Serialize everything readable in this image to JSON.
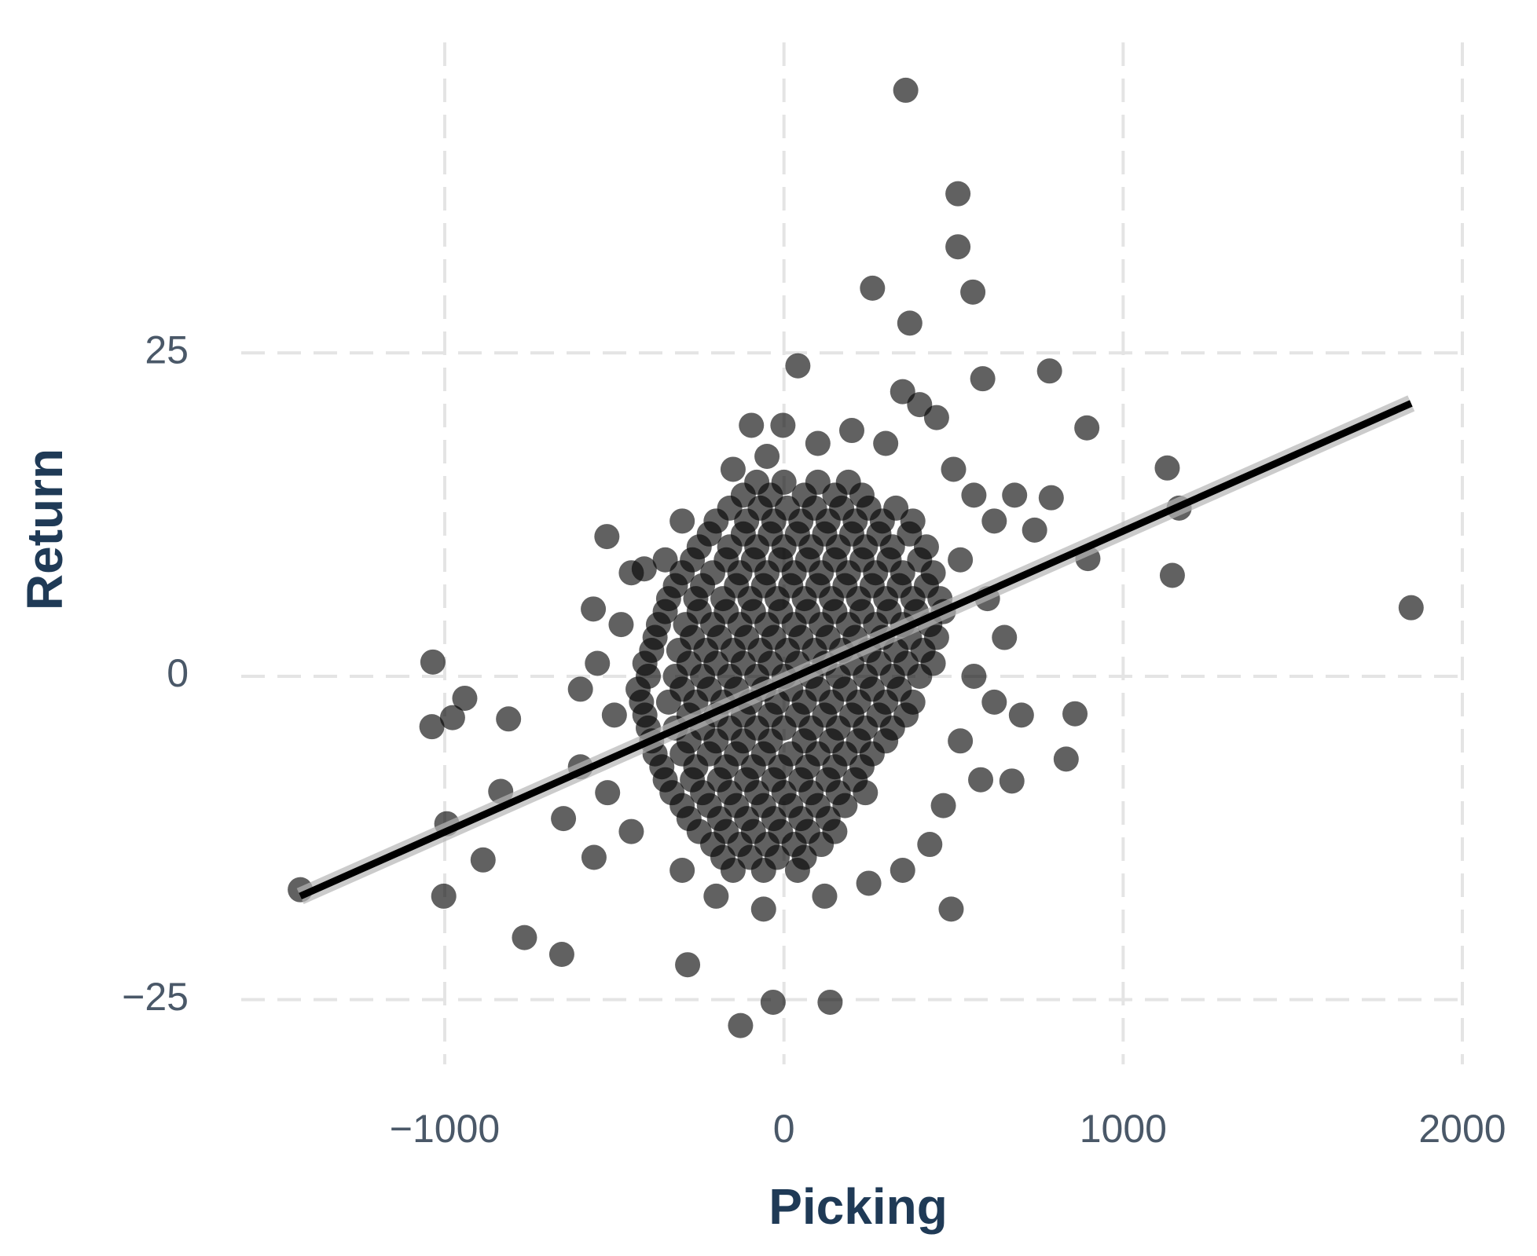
{
  "chart_data": {
    "type": "scatter",
    "x_label": "Picking",
    "y_label": "Return",
    "xlim": [
      -1600,
      2000
    ],
    "ylim": [
      -30,
      49
    ],
    "xticks": [
      {
        "value": -1000,
        "label": "−1000"
      },
      0,
      1000,
      2000
    ],
    "yticks": [
      {
        "value": -25,
        "label": "−25"
      },
      0,
      25
    ],
    "grid": true,
    "color": "#000000",
    "x": [
      359,
      513,
      513,
      557,
      261,
      371,
      41,
      783,
      586,
      893,
      1130,
      1165,
      1145,
      1849,
      -522,
      -1035,
      -941,
      -1038,
      -977,
      -812,
      -1426,
      -1003,
      -765,
      -655,
      -284,
      -128,
      -32,
      136,
      493,
      832,
      858,
      672,
      -887,
      -835,
      -994,
      788,
      739,
      896,
      -562,
      -412,
      -96,
      -3,
      500,
      560,
      620,
      680,
      520,
      600,
      650,
      560,
      620,
      700,
      520,
      580,
      470,
      430,
      350,
      250,
      120,
      -60,
      -200,
      -300,
      -450,
      -520,
      -600,
      -650,
      -560,
      -500,
      -550,
      -480,
      -600,
      -450,
      300,
      200,
      400,
      450,
      350,
      -50,
      -150,
      100,
      -300,
      -350,
      -80,
      0,
      100,
      190,
      -120,
      -40,
      60,
      150,
      230,
      -160,
      -70,
      10,
      90,
      170,
      250,
      330,
      -200,
      -110,
      -30,
      50,
      130,
      210,
      290,
      380,
      -220,
      -120,
      -40,
      40,
      120,
      200,
      280,
      370,
      -250,
      -160,
      -80,
      0,
      80,
      160,
      240,
      320,
      420,
      -270,
      -170,
      -90,
      -10,
      70,
      150,
      230,
      310,
      400,
      -300,
      -210,
      -130,
      -50,
      30,
      110,
      190,
      270,
      350,
      440,
      -320,
      -240,
      -140,
      -60,
      20,
      100,
      180,
      260,
      340,
      420,
      -340,
      -260,
      -180,
      -100,
      -20,
      60,
      140,
      220,
      300,
      380,
      460,
      -350,
      -250,
      -170,
      -90,
      -10,
      70,
      150,
      230,
      310,
      390,
      470,
      -370,
      -290,
      -210,
      -130,
      -50,
      30,
      110,
      190,
      270,
      350,
      430,
      -380,
      -270,
      -190,
      -110,
      -30,
      50,
      130,
      210,
      290,
      370,
      450,
      -390,
      -310,
      -230,
      -150,
      -70,
      10,
      90,
      170,
      250,
      330,
      410,
      -410,
      -280,
      -200,
      -120,
      -40,
      40,
      120,
      200,
      280,
      360,
      440,
      -400,
      -320,
      -240,
      -160,
      -80,
      0,
      80,
      160,
      240,
      320,
      400,
      -430,
      -300,
      -220,
      -140,
      -60,
      20,
      100,
      180,
      260,
      340,
      -420,
      -340,
      -260,
      -180,
      -100,
      -20,
      60,
      140,
      220,
      300,
      380,
      -410,
      -280,
      -200,
      -120,
      -40,
      40,
      120,
      200,
      280,
      360,
      -400,
      -320,
      -240,
      -160,
      -80,
      0,
      80,
      160,
      240,
      320,
      -390,
      -280,
      -200,
      -120,
      -40,
      60,
      140,
      220,
      300,
      -380,
      -300,
      -220,
      -140,
      -60,
      20,
      100,
      180,
      260,
      -360,
      -260,
      -170,
      -90,
      -10,
      70,
      150,
      230,
      -350,
      -270,
      -190,
      -110,
      -30,
      50,
      130,
      210,
      -330,
      -240,
      -160,
      -80,
      0,
      80,
      160,
      240,
      -300,
      -220,
      -140,
      -60,
      20,
      100,
      180,
      -280,
      -190,
      -110,
      -30,
      50,
      130,
      -250,
      -170,
      -90,
      -10,
      70,
      150,
      -210,
      -130,
      -50,
      30,
      110,
      -180,
      -100,
      -20,
      60,
      -150,
      -60,
      40
    ],
    "y": [
      45.3,
      37.3,
      33.2,
      29.7,
      30,
      27.3,
      24,
      23.6,
      23,
      19.2,
      16.1,
      13,
      7.8,
      5.3,
      10.8,
      1.1,
      -1.7,
      -3.9,
      -3.2,
      -3.3,
      -16.5,
      -17,
      -20.2,
      -21.5,
      -22.3,
      -27,
      -25.2,
      -25.2,
      -18,
      -6.4,
      -2.9,
      -8.1,
      -14.2,
      -8.9,
      -11.4,
      13.8,
      11.3,
      9.1,
      5.2,
      8.3,
      19.4,
      19.4,
      16,
      14,
      12,
      14,
      9,
      6,
      3,
      0,
      -2,
      -3,
      -5,
      -8,
      -10,
      -13,
      -15,
      -16,
      -17,
      -18,
      -17,
      -15,
      -12,
      -9,
      -7,
      -11,
      -14,
      -3,
      1,
      4,
      -1,
      8,
      18,
      19,
      21,
      20,
      22,
      17,
      16,
      18,
      12,
      9,
      15,
      15,
      15,
      15,
      14,
      14,
      14,
      14,
      14,
      13,
      13,
      13,
      13,
      13,
      13,
      13,
      12,
      12,
      12,
      12,
      12,
      12,
      12,
      12,
      11,
      11,
      11,
      11,
      11,
      11,
      11,
      11,
      10,
      10,
      10,
      10,
      10,
      10,
      10,
      10,
      10,
      9,
      9,
      9,
      9,
      9,
      9,
      9,
      9,
      9,
      8,
      8,
      8,
      8,
      8,
      8,
      8,
      8,
      8,
      8,
      7,
      7,
      7,
      7,
      7,
      7,
      7,
      7,
      7,
      7,
      6,
      6,
      6,
      6,
      6,
      6,
      6,
      6,
      6,
      6,
      6,
      5,
      5,
      5,
      5,
      5,
      5,
      5,
      5,
      5,
      5,
      5,
      4,
      4,
      4,
      4,
      4,
      4,
      4,
      4,
      4,
      4,
      4,
      3,
      3,
      3,
      3,
      3,
      3,
      3,
      3,
      3,
      3,
      3,
      2,
      2,
      2,
      2,
      2,
      2,
      2,
      2,
      2,
      2,
      2,
      1,
      1,
      1,
      1,
      1,
      1,
      1,
      1,
      1,
      1,
      1,
      0,
      0,
      0,
      0,
      0,
      0,
      0,
      0,
      0,
      0,
      0,
      -1,
      -1,
      -1,
      -1,
      -1,
      -1,
      -1,
      -1,
      -1,
      -1,
      -2,
      -2,
      -2,
      -2,
      -2,
      -2,
      -2,
      -2,
      -2,
      -2,
      -2,
      -3,
      -3,
      -3,
      -3,
      -3,
      -3,
      -3,
      -3,
      -3,
      -3,
      -4,
      -4,
      -4,
      -4,
      -4,
      -4,
      -4,
      -4,
      -4,
      -4,
      -5,
      -5,
      -5,
      -5,
      -5,
      -5,
      -5,
      -5,
      -5,
      -6,
      -6,
      -6,
      -6,
      -6,
      -6,
      -6,
      -6,
      -6,
      -7,
      -7,
      -7,
      -7,
      -7,
      -7,
      -7,
      -7,
      -8,
      -8,
      -8,
      -8,
      -8,
      -8,
      -8,
      -8,
      -9,
      -9,
      -9,
      -9,
      -9,
      -9,
      -9,
      -9,
      -10,
      -10,
      -10,
      -10,
      -10,
      -10,
      -10,
      -11,
      -11,
      -11,
      -11,
      -11,
      -11,
      -12,
      -12,
      -12,
      -12,
      -12,
      -12,
      -13,
      -13,
      -13,
      -13,
      -13,
      -14,
      -14,
      -14,
      -14,
      -15,
      -15,
      -15
    ],
    "fit": {
      "x": [
        -1426,
        1849
      ],
      "y": [
        -17,
        21.1
      ]
    }
  }
}
